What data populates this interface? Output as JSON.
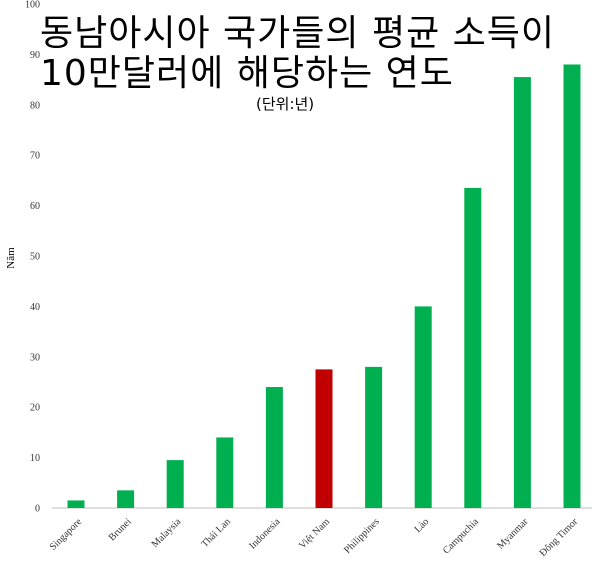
{
  "chart_data": {
    "type": "bar",
    "title_line1": "동남아시아 국가들의 평균 소득이",
    "title_line2": "10만달러에 해당하는 연도",
    "subtitle": "(단위:년)",
    "ylabel": "Năm",
    "xlabel": "",
    "ylim": [
      0,
      100
    ],
    "yticks": [
      0,
      10,
      20,
      30,
      40,
      50,
      60,
      70,
      80,
      90,
      100
    ],
    "grid": false,
    "categories": [
      "Singapore",
      "Brunei",
      "Malaysia",
      "Thái Lan",
      "Indonesia",
      "Việt Nam",
      "Philippines",
      "Lào",
      "Campuchia",
      "Myanmar",
      "Đông Timor"
    ],
    "values": [
      1.5,
      3.5,
      9.5,
      14,
      24,
      27.5,
      28,
      40,
      63.5,
      85.5,
      88
    ],
    "colors": {
      "default": "#00b050",
      "highlight": "#c00000"
    },
    "highlight_category": "Việt Nam"
  }
}
